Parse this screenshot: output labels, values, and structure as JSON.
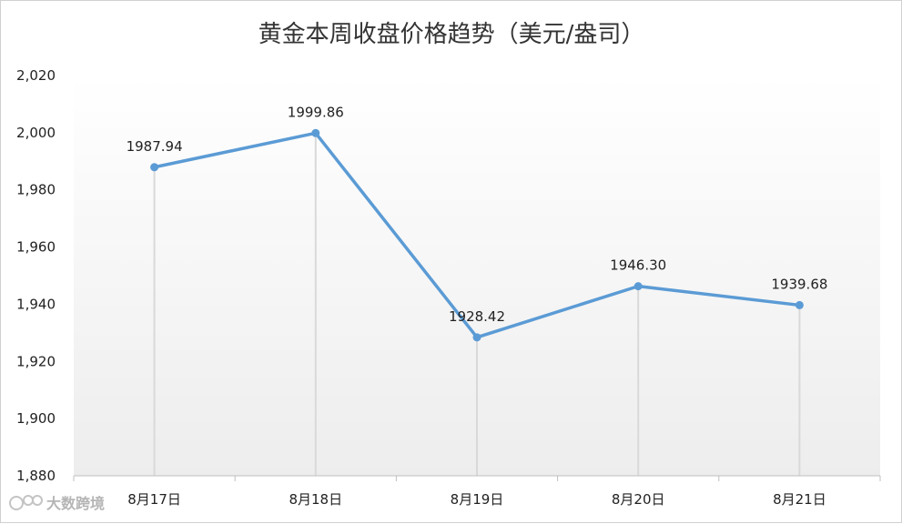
{
  "chart_data": {
    "type": "line",
    "title": "黄金本周收盘价格趋势（美元/盎司）",
    "categories": [
      "8月17日",
      "8月18日",
      "8月19日",
      "8月20日",
      "8月21日"
    ],
    "series": [
      {
        "values": [
          1987.94,
          1999.86,
          1928.42,
          1946.3,
          1939.68
        ]
      }
    ],
    "data_labels": [
      "1987.94",
      "1999.86",
      "1928.42",
      "1946.30",
      "1939.68"
    ],
    "y_ticks": [
      1880,
      1900,
      1920,
      1940,
      1960,
      1980,
      2000,
      2020
    ],
    "y_tick_labels": [
      "1,880",
      "1,900",
      "1,920",
      "1,940",
      "1,960",
      "1,980",
      "2,000",
      "2,020"
    ],
    "ylim": [
      1880,
      2020
    ],
    "xlabel": "",
    "ylabel": "",
    "grid": false,
    "drop_lines": true,
    "legend": "none"
  },
  "colors": {
    "line": "#5b9bd5",
    "drop_line": "#d9d9d9",
    "axis": "#bfbfbf",
    "plot_bg_top": "#ffffff",
    "plot_bg_bottom": "#ededed"
  },
  "watermark": {
    "icon": "logo-icon",
    "text": "大数跨境"
  }
}
